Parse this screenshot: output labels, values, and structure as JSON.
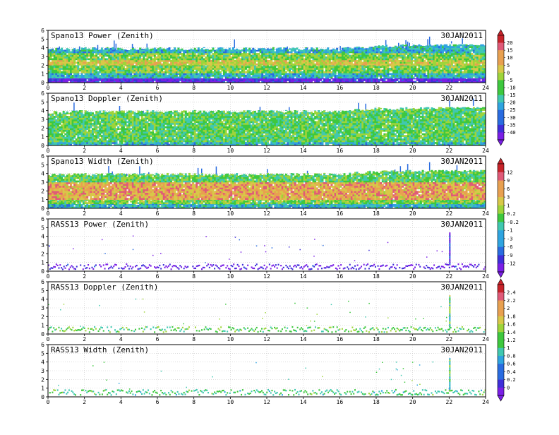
{
  "palette": [
    "#7a1fe6",
    "#3f2fd9",
    "#2a6ce0",
    "#2fa4e0",
    "#40c8b0",
    "#3ec83e",
    "#9ed43a",
    "#d8c848",
    "#e8a050",
    "#e05a78",
    "#c8242a"
  ],
  "chart_data": [
    {
      "type": "heatmap",
      "title": "Spano13 Power (Zenith)",
      "date": "30JAN2011",
      "xlim": [
        0,
        24
      ],
      "ylim": [
        0,
        6
      ],
      "xticks": [
        "0",
        "2",
        "4",
        "6",
        "8",
        "10",
        "12",
        "14",
        "16",
        "18",
        "20",
        "22",
        "24"
      ],
      "yticks": [
        "0",
        "1",
        "2",
        "3",
        "4",
        "5",
        "6"
      ],
      "top_height": {
        "x": [
          0,
          2,
          4,
          6,
          8,
          10,
          12,
          14,
          16,
          18,
          20,
          22,
          24
        ],
        "y": [
          3.8,
          3.9,
          3.9,
          3.9,
          3.9,
          3.9,
          3.9,
          3.9,
          3.9,
          4.2,
          4.3,
          4.4,
          4.4
        ]
      },
      "layers": [
        {
          "y": [
            0.0,
            0.5
          ],
          "level": 0.05
        },
        {
          "y": [
            0.5,
            1.1
          ],
          "level": 0.35
        },
        {
          "y": [
            1.1,
            2.0
          ],
          "level": 0.55
        },
        {
          "y": [
            2.0,
            2.6
          ],
          "level": 0.68
        },
        {
          "y": [
            2.6,
            3.4
          ],
          "level": 0.55
        },
        {
          "y": [
            3.4,
            4.4
          ],
          "level": 0.35
        }
      ]
    },
    {
      "type": "heatmap",
      "title": "Spano13 Doppler (Zenith)",
      "date": "30JAN2011",
      "xlim": [
        0,
        24
      ],
      "ylim": [
        0,
        6
      ],
      "xticks": [
        "0",
        "2",
        "4",
        "6",
        "8",
        "10",
        "12",
        "14",
        "16",
        "18",
        "20",
        "22",
        "24"
      ],
      "yticks": [
        "0",
        "1",
        "2",
        "3",
        "4",
        "5",
        "6"
      ],
      "top_height": {
        "x": [
          0,
          2,
          4,
          6,
          8,
          10,
          12,
          14,
          16,
          18,
          20,
          22,
          24
        ],
        "y": [
          3.8,
          3.9,
          3.9,
          3.9,
          3.9,
          3.9,
          3.9,
          3.9,
          3.9,
          4.2,
          4.3,
          4.4,
          4.4
        ]
      },
      "layers": [
        {
          "y": [
            0.0,
            0.4
          ],
          "level": 0.35
        },
        {
          "y": [
            0.4,
            4.4
          ],
          "level": 0.5
        }
      ]
    },
    {
      "type": "heatmap",
      "title": "Spano13 Width (Zenith)",
      "date": "30JAN2011",
      "xlim": [
        0,
        24
      ],
      "ylim": [
        0,
        6
      ],
      "xticks": [
        "0",
        "2",
        "4",
        "6",
        "8",
        "10",
        "12",
        "14",
        "16",
        "18",
        "20",
        "22",
        "24"
      ],
      "yticks": [
        "0",
        "1",
        "2",
        "3",
        "4",
        "5",
        "6"
      ],
      "top_height": {
        "x": [
          0,
          2,
          4,
          6,
          8,
          10,
          12,
          14,
          16,
          18,
          20,
          22,
          24
        ],
        "y": [
          3.8,
          3.9,
          3.9,
          3.9,
          3.9,
          3.9,
          3.9,
          3.9,
          3.9,
          4.2,
          4.3,
          4.4,
          4.4
        ]
      },
      "layers": [
        {
          "y": [
            0.0,
            0.5
          ],
          "level": 0.35
        },
        {
          "y": [
            0.5,
            1.0
          ],
          "level": 0.55
        },
        {
          "y": [
            1.0,
            3.0
          ],
          "level": 0.78
        },
        {
          "y": [
            3.0,
            4.4
          ],
          "level": 0.5
        }
      ]
    },
    {
      "type": "heatmap",
      "title": "RASS13 Power (Zenith)",
      "date": "30JAN2011",
      "xlim": [
        0,
        24
      ],
      "ylim": [
        0,
        6
      ],
      "xticks": [
        "0",
        "2",
        "4",
        "6",
        "8",
        "10",
        "12",
        "14",
        "16",
        "18",
        "20",
        "22",
        "24"
      ],
      "yticks": [
        "0",
        "1",
        "2",
        "3",
        "4",
        "5",
        "6"
      ],
      "band": {
        "y": [
          0.1,
          0.7
        ],
        "level": 0.05
      },
      "scatter_level": 0.1
    },
    {
      "type": "heatmap",
      "title": "RASS13 Doppler (Zenith)",
      "date": "30JAN2011",
      "xlim": [
        0,
        24
      ],
      "ylim": [
        0,
        6
      ],
      "xticks": [
        "0",
        "2",
        "4",
        "6",
        "8",
        "10",
        "12",
        "14",
        "16",
        "18",
        "20",
        "22",
        "24"
      ],
      "yticks": [
        "0",
        "1",
        "2",
        "3",
        "4",
        "5",
        "6"
      ],
      "band": {
        "y": [
          0.1,
          0.7
        ],
        "level": 0.5
      },
      "scatter_level": 0.5
    },
    {
      "type": "heatmap",
      "title": "RASS13 Width (Zenith)",
      "date": "30JAN2011",
      "xlim": [
        0,
        24
      ],
      "ylim": [
        0,
        6
      ],
      "xticks": [
        "0",
        "2",
        "4",
        "6",
        "8",
        "10",
        "12",
        "14",
        "16",
        "18",
        "20",
        "22",
        "24"
      ],
      "yticks": [
        "0",
        "1",
        "2",
        "3",
        "4",
        "5",
        "6"
      ],
      "band": {
        "y": [
          0.1,
          0.7
        ],
        "level": 0.45
      },
      "scatter_level": 0.45
    }
  ],
  "colorbars": [
    {
      "labels": [
        "20",
        "15",
        "10",
        "5",
        "0",
        "-5",
        "-10",
        "-15",
        "-20",
        "-25",
        "-30",
        "-35",
        "-40"
      ]
    },
    {
      "labels": [
        "12",
        "9",
        "6",
        "3",
        "1",
        "0.2",
        "-0.2",
        "-1",
        "-3",
        "-6",
        "-9",
        "-12"
      ]
    },
    {
      "labels": [
        "2.4",
        "2.2",
        "2",
        "1.8",
        "1.6",
        "1.4",
        "1.2",
        "1",
        "0.8",
        "0.6",
        "0.4",
        "0.2",
        "0"
      ]
    }
  ]
}
